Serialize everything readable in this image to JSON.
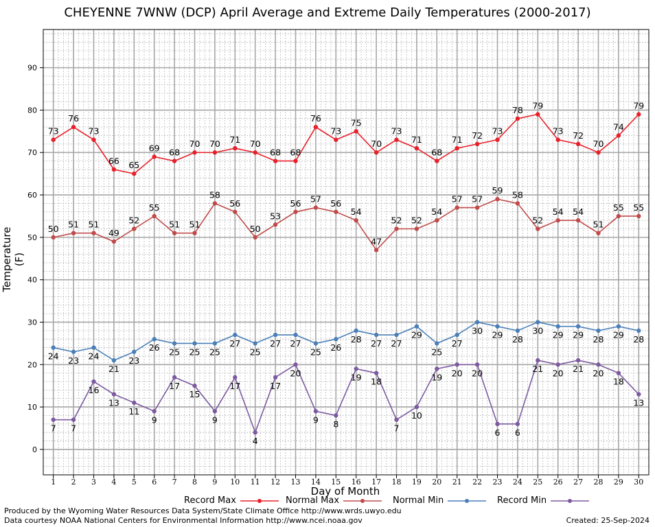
{
  "title": "CHEYENNE 7WNW (DCP) April Average and Extreme Daily Temperatures (2000-2017)",
  "footer": {
    "produced_by": "Produced by the Wyoming Water Resources Data System/State Climate Office http://www.wrds.uwyo.edu",
    "courtesy": "Data courtesy NOAA National Centers for Environmental Information http://www.ncei.noaa.gov",
    "created": "Created: 25-Sep-2024"
  },
  "chart_data": {
    "type": "line",
    "title": "CHEYENNE 7WNW (DCP) April Average and Extreme Daily Temperatures (2000-2017)",
    "xlabel": "Day of Month",
    "ylabel": "Temperature (F)",
    "x": [
      1,
      2,
      3,
      4,
      5,
      6,
      7,
      8,
      9,
      10,
      11,
      12,
      13,
      14,
      15,
      16,
      17,
      18,
      19,
      20,
      21,
      22,
      23,
      24,
      25,
      26,
      27,
      28,
      29,
      30
    ],
    "xlim": [
      0.5,
      30.5
    ],
    "ylim": [
      -6,
      99
    ],
    "yticks": [
      0,
      10,
      20,
      30,
      40,
      50,
      60,
      70,
      80,
      90
    ],
    "grid": true,
    "legend": "bottom",
    "series": [
      {
        "name": "Record Max",
        "color": "#e8202a",
        "values": [
          73,
          76,
          73,
          66,
          65,
          69,
          68,
          70,
          70,
          71,
          70,
          68,
          68,
          76,
          73,
          75,
          70,
          73,
          71,
          68,
          71,
          72,
          73,
          78,
          79,
          73,
          72,
          70,
          74,
          79
        ]
      },
      {
        "name": "Normal Max",
        "color": "#c04a4a",
        "values": [
          50,
          51,
          51,
          49,
          52,
          55,
          51,
          51,
          58,
          56,
          50,
          53,
          56,
          57,
          56,
          54,
          47,
          52,
          52,
          54,
          57,
          57,
          59,
          58,
          52,
          54,
          54,
          51,
          55,
          55
        ]
      },
      {
        "name": "Normal Min",
        "color": "#4a7fb8",
        "values": [
          24,
          23,
          24,
          21,
          23,
          26,
          25,
          25,
          25,
          27,
          25,
          27,
          27,
          25,
          26,
          28,
          27,
          27,
          29,
          25,
          27,
          30,
          29,
          28,
          30,
          29,
          29,
          28,
          29,
          28
        ]
      },
      {
        "name": "Record Min",
        "color": "#7d5aa0",
        "values": [
          7,
          7,
          16,
          13,
          11,
          9,
          17,
          15,
          9,
          17,
          4,
          17,
          20,
          9,
          8,
          19,
          18,
          7,
          10,
          19,
          20,
          20,
          6,
          6,
          21,
          20,
          21,
          20,
          18,
          13
        ]
      }
    ]
  }
}
